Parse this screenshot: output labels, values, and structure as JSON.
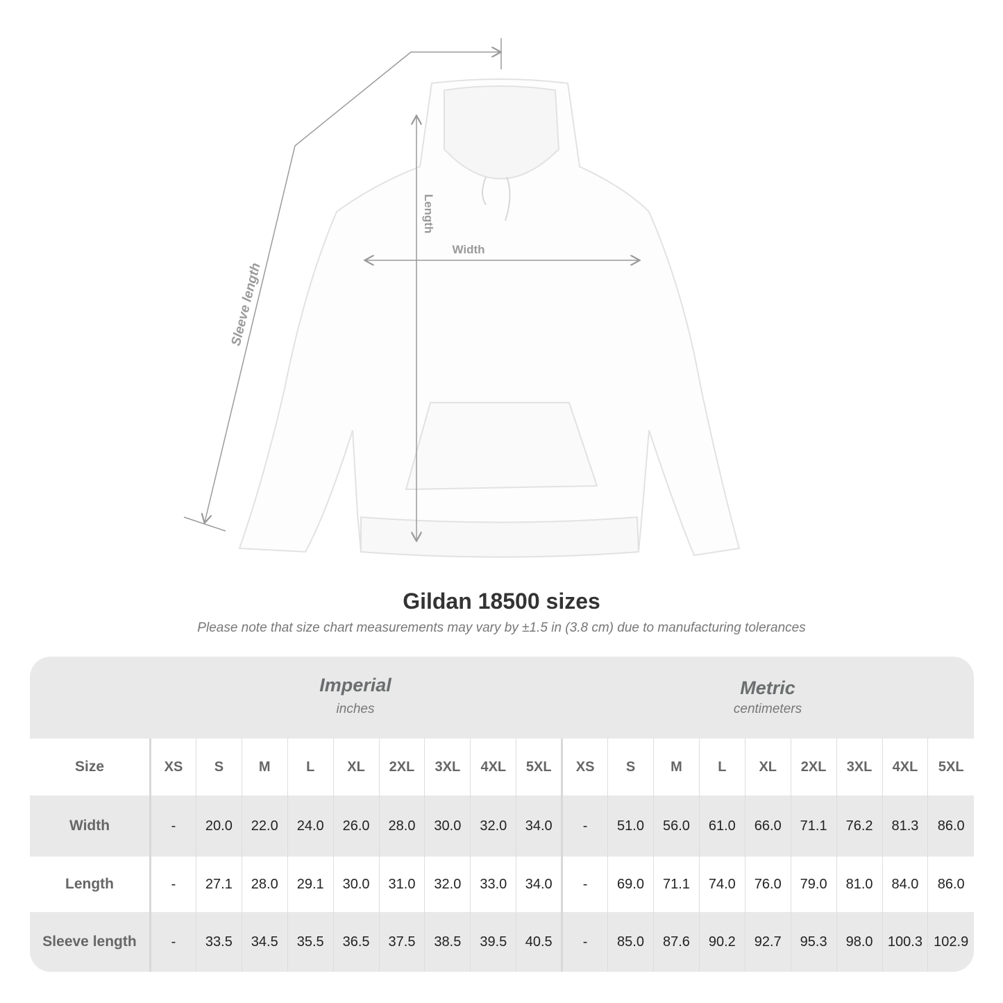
{
  "diagram": {
    "labels": {
      "sleeve": "Sleeve length",
      "length": "Length",
      "width": "Width"
    },
    "garment_color": "#ffffff",
    "line_color": "#9a9a9a"
  },
  "title": "Gildan 18500 sizes",
  "subtitle": "Please note that size chart measurements may vary by ±1.5 in (3.8 cm) due to manufacturing tolerances",
  "table": {
    "imperial": {
      "name": "Imperial",
      "unit": "inches"
    },
    "metric": {
      "name": "Metric",
      "unit": "centimeters"
    },
    "size_label": "Size",
    "sizes": [
      "XS",
      "S",
      "M",
      "L",
      "XL",
      "2XL",
      "3XL",
      "4XL",
      "5XL"
    ],
    "rows": [
      {
        "label": "Width",
        "imperial": [
          "-",
          "20.0",
          "22.0",
          "24.0",
          "26.0",
          "28.0",
          "30.0",
          "32.0",
          "34.0"
        ],
        "metric": [
          "-",
          "51.0",
          "56.0",
          "61.0",
          "66.0",
          "71.1",
          "76.2",
          "81.3",
          "86.0"
        ]
      },
      {
        "label": "Length",
        "imperial": [
          "-",
          "27.1",
          "28.0",
          "29.1",
          "30.0",
          "31.0",
          "32.0",
          "33.0",
          "34.0"
        ],
        "metric": [
          "-",
          "69.0",
          "71.1",
          "74.0",
          "76.0",
          "79.0",
          "81.0",
          "84.0",
          "86.0"
        ]
      },
      {
        "label": "Sleeve length",
        "imperial": [
          "-",
          "33.5",
          "34.5",
          "35.5",
          "36.5",
          "37.5",
          "38.5",
          "39.5",
          "40.5"
        ],
        "metric": [
          "-",
          "85.0",
          "87.6",
          "90.2",
          "92.7",
          "95.3",
          "98.0",
          "100.3",
          "102.9"
        ]
      }
    ]
  }
}
